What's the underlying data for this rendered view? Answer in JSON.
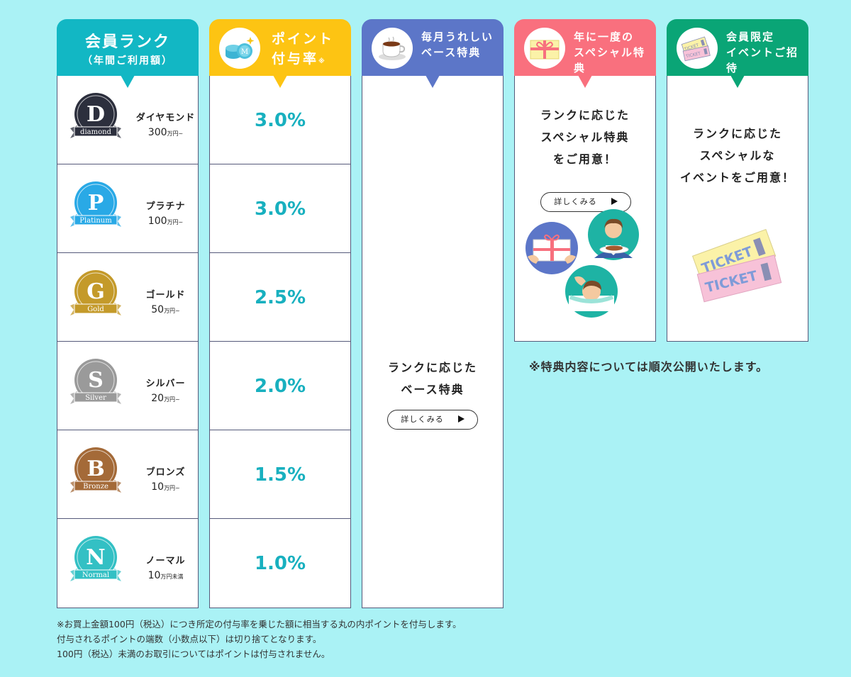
{
  "rank_column": {
    "title": "会員ランク",
    "subtitle": "（年間ご利用額）",
    "ranks": [
      {
        "name": "ダイヤモンド",
        "amount": "300",
        "unit": "万円~",
        "medal_letter": "D",
        "medal_word": "diamond",
        "color": "#2c2f3d"
      },
      {
        "name": "プラチナ",
        "amount": "100",
        "unit": "万円~",
        "medal_letter": "P",
        "medal_word": "Platinum",
        "color": "#29a9e6"
      },
      {
        "name": "ゴールド",
        "amount": "50",
        "unit": "万円~",
        "medal_letter": "G",
        "medal_word": "Gold",
        "color": "#c49a2a"
      },
      {
        "name": "シルバー",
        "amount": "20",
        "unit": "万円~",
        "medal_letter": "S",
        "medal_word": "Silver",
        "color": "#9a9a9a"
      },
      {
        "name": "ブロンズ",
        "amount": "10",
        "unit": "万円~",
        "medal_letter": "B",
        "medal_word": "Bronze",
        "color": "#a46a38"
      },
      {
        "name": "ノーマル",
        "amount": "10",
        "unit": "万円未満",
        "medal_letter": "N",
        "medal_word": "Normal",
        "color": "#33c0c4"
      }
    ]
  },
  "rate_column": {
    "title_line1": "ポイント",
    "title_line2": "付与率",
    "title_mark": "※",
    "icon": "coins-icon",
    "rates": [
      "3.0%",
      "3.0%",
      "2.5%",
      "2.0%",
      "1.5%",
      "1.0%"
    ]
  },
  "base_column": {
    "title_line1": "毎月うれしい",
    "title_line2": "ベース特典",
    "icon": "coffee-cup-icon",
    "text_line1": "ランクに応じた",
    "text_line2": "ベース特典",
    "button_label": "詳しくみる"
  },
  "special_column": {
    "title_line1": "年に一度の",
    "title_line2": "スペシャル特典",
    "icon": "gift-icon",
    "text_line1": "ランクに応じた",
    "text_line2": "スペシャル特典",
    "text_line3": "をご用意！",
    "button_label": "詳しくみる"
  },
  "event_column": {
    "title_line1": "会員限定",
    "title_line2": "イベントご招待",
    "icon": "ticket-icon",
    "text_line1": "ランクに応じた",
    "text_line2": "スペシャルな",
    "text_line3": "イベントをご用意！",
    "ticket_label": "TICKET"
  },
  "notice": "※特典内容については順次公開いたします。",
  "footnotes": [
    "※お買上金額100円（税込）につき所定の付与率を乗じた額に相当する丸の内ポイントを付与します。",
    "付与されるポイントの端数（小数点以下）は切り捨てとなります。",
    "100円（税込）未満のお取引についてはポイントは付与されません。"
  ]
}
